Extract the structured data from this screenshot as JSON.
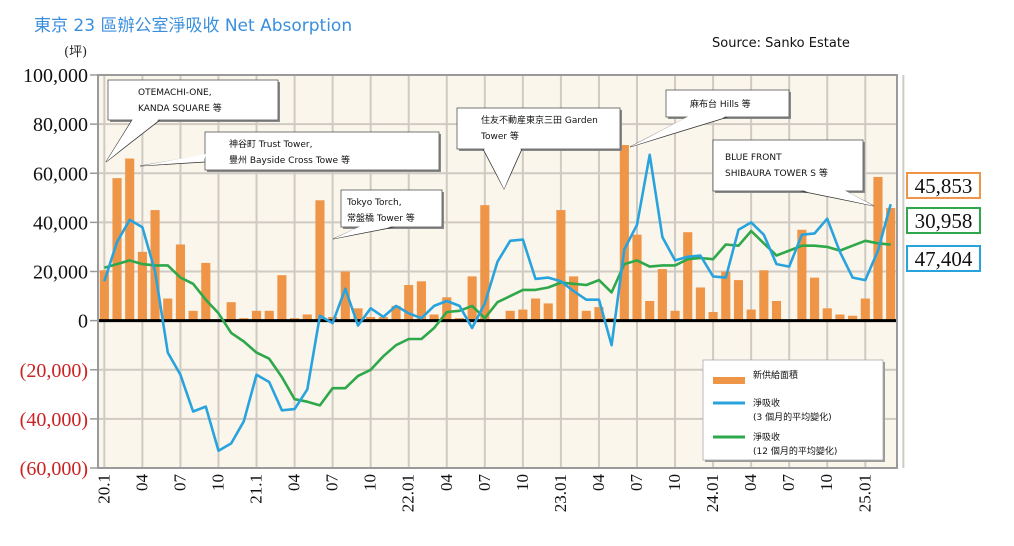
{
  "header": {
    "title": "東京 23 區辦公室淨吸收 Net Absorption",
    "unit": "(坪)",
    "source": "Source: Sanko Estate"
  },
  "colors": {
    "bar": "#ef9548",
    "line3": "#29a3dd",
    "line12": "#2ea84a",
    "plot_bg": "#fbf6ec",
    "grid": "#cfcac2",
    "negative_tick": "#cc2222",
    "title": "#3a8fdc"
  },
  "annotations": [
    {
      "lines": [
        "OTEMACHI-ONE,",
        "KANDA SQUARE 等"
      ],
      "target_month": 2
    },
    {
      "lines": [
        "神谷町  Trust Tower,",
        "豐州  Bayside Cross Towe 等"
      ],
      "target_month": 2
    },
    {
      "lines": [
        "Tokyo Torch,",
        "常盤橋  Tower 等"
      ],
      "target_month": 17
    },
    {
      "lines": [
        "住友不動産東京三田  Garden",
        "Tower 等"
      ],
      "target_month": 31
    },
    {
      "lines": [
        "麻布台  Hills 等"
      ],
      "target_month": 41
    },
    {
      "lines": [
        "BLUE FRONT",
        "SHIBAURA TOWER S 等"
      ],
      "target_month": 61
    }
  ],
  "legend": {
    "items": [
      {
        "label": [
          "新供給面積"
        ],
        "type": "bar"
      },
      {
        "label": [
          "淨吸收",
          "(3 個月的平均變化)"
        ],
        "type": "line3"
      },
      {
        "label": [
          "淨吸收",
          "(12 個月的平均變化)"
        ],
        "type": "line12"
      }
    ]
  },
  "latest_values": {
    "supply": "45,853",
    "avg12": "30,958",
    "avg3": "47,404"
  },
  "chart_data": {
    "type": "bar",
    "title": "東京 23 區辦公室淨吸收 Net Absorption",
    "ylabel": "(坪)",
    "xlabel": "",
    "ylim": [
      -60000,
      100000
    ],
    "yticks": [
      100000,
      80000,
      60000,
      40000,
      20000,
      0,
      -20000,
      -40000,
      -60000
    ],
    "ytick_labels": [
      "100,000",
      "80,000",
      "60,000",
      "40,000",
      "20,000",
      "0",
      "(20,000)",
      "(40,000)",
      "(60,000)"
    ],
    "grid": true,
    "legend_position": "bottom-right",
    "x_start": "2020-01",
    "x_count": 63,
    "xtick_labels": [
      {
        "label": "20.1",
        "month": 0
      },
      {
        "label": "04",
        "month": 3
      },
      {
        "label": "07",
        "month": 6
      },
      {
        "label": "10",
        "month": 9
      },
      {
        "label": "21.1",
        "month": 12
      },
      {
        "label": "04",
        "month": 15
      },
      {
        "label": "07",
        "month": 18
      },
      {
        "label": "10",
        "month": 21
      },
      {
        "label": "22.01",
        "month": 24
      },
      {
        "label": "04",
        "month": 27
      },
      {
        "label": "07",
        "month": 30
      },
      {
        "label": "10",
        "month": 33
      },
      {
        "label": "23.01",
        "month": 36
      },
      {
        "label": "04",
        "month": 39
      },
      {
        "label": "07",
        "month": 42
      },
      {
        "label": "10",
        "month": 45
      },
      {
        "label": "24.01",
        "month": 48
      },
      {
        "label": "04",
        "month": 51
      },
      {
        "label": "07",
        "month": 54
      },
      {
        "label": "10",
        "month": 57
      },
      {
        "label": "25.01",
        "month": 60
      }
    ],
    "series": [
      {
        "name": "新供給面積",
        "kind": "bar",
        "values": [
          20500,
          58000,
          66000,
          28000,
          45000,
          9000,
          31000,
          4000,
          23500,
          0,
          7500,
          1000,
          4000,
          4000,
          18500,
          1000,
          2500,
          49000,
          1500,
          20000,
          5000,
          1500,
          1500,
          6000,
          14500,
          16000,
          2500,
          9500,
          1000,
          18000,
          47000,
          0,
          4000,
          4500,
          9000,
          7000,
          45000,
          18000,
          4000,
          5500,
          1000,
          71500,
          35000,
          8000,
          21000,
          4000,
          36000,
          13500,
          3500,
          20000,
          16500,
          4500,
          20500,
          8000,
          0,
          37000,
          17500,
          5000,
          2500,
          2000,
          9000,
          58500,
          45853
        ]
      },
      {
        "name": "淨吸收 (3 個月的平均變化)",
        "kind": "line3",
        "values": [
          16000,
          32000,
          41000,
          38000,
          20000,
          -13000,
          -22000,
          -37000,
          -35000,
          -53000,
          -50000,
          -41000,
          -22000,
          -25000,
          -36500,
          -36000,
          -28000,
          2000,
          -1000,
          13000,
          -2000,
          5000,
          1500,
          6000,
          3000,
          1000,
          6000,
          8000,
          6000,
          -3000,
          7000,
          24000,
          32500,
          33000,
          17000,
          17500,
          16000,
          12000,
          8500,
          8500,
          -10000,
          29000,
          39000,
          67500,
          34000,
          24500,
          26000,
          26500,
          18000,
          17500,
          37000,
          40000,
          35000,
          23000,
          22000,
          35000,
          35500,
          41500,
          28000,
          17500,
          16500,
          28500,
          47404
        ]
      },
      {
        "name": "淨吸收 (12 個月的平均變化)",
        "kind": "line12",
        "values": [
          21500,
          23000,
          24500,
          23000,
          22500,
          22500,
          17500,
          15000,
          8500,
          3000,
          -5000,
          -8500,
          -13000,
          -15500,
          -23000,
          -32000,
          -33000,
          -34500,
          -27500,
          -27500,
          -22500,
          -20000,
          -14500,
          -10000,
          -7500,
          -7500,
          -3000,
          3500,
          4000,
          6000,
          1000,
          7500,
          10000,
          12500,
          12500,
          13500,
          15500,
          15000,
          14500,
          16500,
          11500,
          23000,
          24500,
          22000,
          22500,
          22500,
          25000,
          25500,
          25000,
          31000,
          30500,
          36500,
          31500,
          26500,
          28500,
          30500,
          30500,
          30000,
          28500,
          30500,
          32500,
          31500,
          30958
        ]
      }
    ]
  }
}
